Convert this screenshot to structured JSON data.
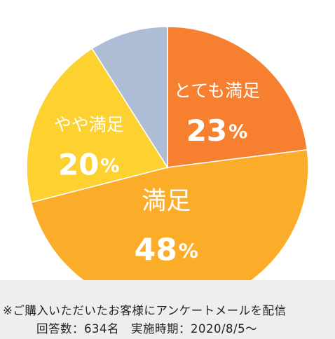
{
  "chart_data": {
    "type": "pie",
    "start_angle_deg": 0,
    "direction": "clockwise",
    "slices": [
      {
        "label": "とても満足",
        "value": 23,
        "display": "23",
        "unit": "%",
        "color": "#F77F30",
        "show_label": true
      },
      {
        "label": "満足",
        "value": 48,
        "display": "48",
        "unit": "%",
        "color": "#FBAD2A",
        "show_label": true
      },
      {
        "label": "やや満足",
        "value": 20,
        "display": "20",
        "unit": "%",
        "color": "#FCD130",
        "show_label": true
      },
      {
        "label": "",
        "value": 9,
        "display": "",
        "unit": "",
        "color": "#AEBDD6",
        "show_label": false
      }
    ],
    "label_color": "#FFFFFF"
  },
  "footnote": {
    "line1": "※ご購入いただいたお客様にアンケートメールを配信",
    "line2": "回答数：634名　実施時期：2020/8/5〜",
    "background": "#EEEEEE"
  }
}
